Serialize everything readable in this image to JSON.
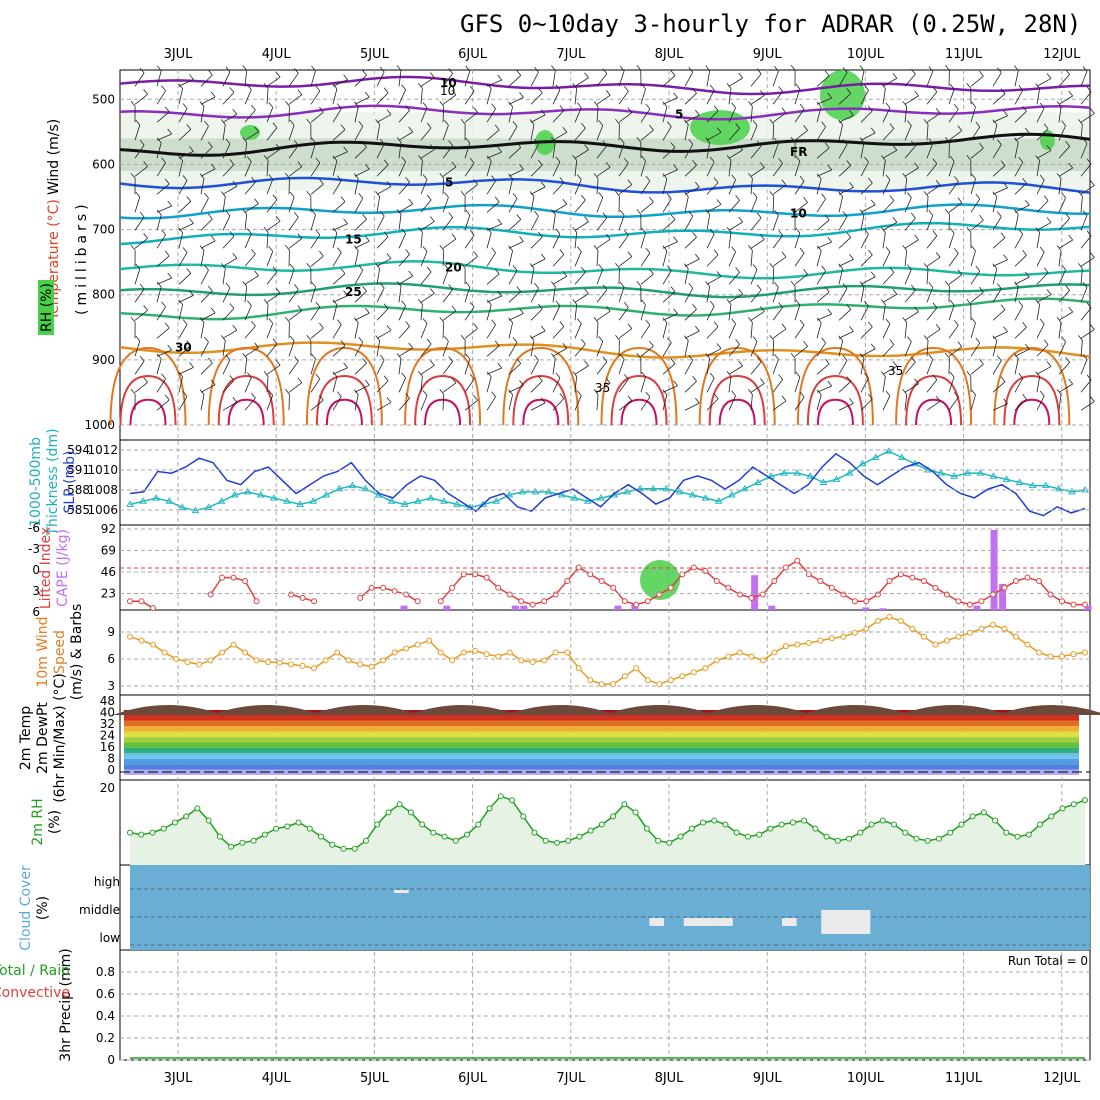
{
  "title": "GFS 0~10day 3-hourly for ADRAR (0.25W, 28N)",
  "dates": [
    "3JUL",
    "4JUL",
    "5JUL",
    "6JUL",
    "7JUL",
    "8JUL",
    "9JUL",
    "10JUL",
    "11JUL",
    "12JUL"
  ],
  "panels": {
    "upper": {
      "side_labels": [
        {
          "text": "Wind (m/s)",
          "color": "#000000"
        },
        {
          "text": "Temperature (°C)",
          "color": "#e04020"
        },
        {
          "text": "RH (%)",
          "color": "#000000"
        },
        {
          "text": "(millibars)",
          "color": "#000000"
        }
      ],
      "pressure_ticks": [
        "500",
        "600",
        "700",
        "800",
        "900",
        "1000"
      ],
      "contour_labels": [
        "10",
        "10",
        "5",
        "FR",
        "FR",
        "5",
        "5",
        "10",
        "15",
        "15",
        "20",
        "20",
        "25",
        "25",
        "30",
        "30",
        "35",
        "35"
      ],
      "rh_label": "30"
    },
    "slp": {
      "side_labels": [
        {
          "text": "1000-500mb",
          "color": "#20b0c0"
        },
        {
          "text": "Thickness (dm)",
          "color": "#20b0c0"
        },
        {
          "text": "SLP (mb)",
          "color": "#2040d0"
        }
      ],
      "left_ticks": [
        "594",
        "591",
        "588",
        "585"
      ],
      "right_ticks": [
        "1012",
        "1010",
        "1008",
        "1006"
      ]
    },
    "cape": {
      "side_labels": [
        {
          "text": "Lifted Index",
          "color": "#e04040"
        },
        {
          "text": "CAPE (J/kg)",
          "color": "#c070f0"
        }
      ],
      "left_ticks": [
        "-6",
        "-3",
        "0",
        "3",
        "6"
      ],
      "right_ticks": [
        "92",
        "69",
        "46",
        "23"
      ]
    },
    "wind10": {
      "side_labels": [
        {
          "text": "10m Wind",
          "color": "#e08020"
        },
        {
          "text": "Speed",
          "color": "#e08020"
        },
        {
          "text": "(m/s) & Barbs",
          "color": "#000000"
        }
      ],
      "ticks": [
        "9",
        "6",
        "3"
      ]
    },
    "temp2m": {
      "side_labels": [
        {
          "text": "2m Temp",
          "color": "#000000"
        },
        {
          "text": "2m DewPt",
          "color": "#000000"
        },
        {
          "text": "(6hr Min/Max) (°C)",
          "color": "#000000"
        }
      ],
      "ticks": [
        "48",
        "40",
        "32",
        "24",
        "16",
        "8",
        "0"
      ]
    },
    "rh2m": {
      "side_labels": [
        {
          "text": "2m RH",
          "color": "#20a020"
        },
        {
          "text": "(%)",
          "color": "#000000"
        }
      ],
      "ticks": [
        "20"
      ]
    },
    "cloud": {
      "side_labels": [
        {
          "text": "Cloud Cover",
          "color": "#5aaad8"
        },
        {
          "text": "(%)",
          "color": "#000000"
        }
      ],
      "levels": [
        "high",
        "middle",
        "low"
      ]
    },
    "precip": {
      "side_labels": [
        {
          "text": "Total / Rain",
          "color": "#20a020"
        },
        {
          "text": "Convective",
          "color": "#e04040"
        },
        {
          "text": "3hr Precip (mm)",
          "color": "#000000"
        }
      ],
      "ticks": [
        "0.8",
        "0.6",
        "0.4",
        "0.2",
        "0"
      ],
      "run_total": "Run Total = 0"
    }
  },
  "colors": {
    "grid": "#aaaaaa",
    "cloud_bg": "#6aaed6",
    "slp_line": "#1f3fd0",
    "thickness_line": "#20b8c0",
    "lifted_index": "#e04040",
    "cape_bars": "#c070f0",
    "wind_line": "#e89a20",
    "rh_line": "#20a020",
    "temp_dark": "#6b4a3c"
  },
  "chart_data": [
    {
      "type": "line",
      "name": "slp",
      "ylabel": "SLP (mb)",
      "ylim": [
        1005,
        1013.5
      ],
      "values": [
        1008,
        1008.2,
        1010.5,
        1010.3,
        1011,
        1012,
        1011.5,
        1009.5,
        1009,
        1010.5,
        1011,
        1009.5,
        1008,
        1009,
        1010,
        1010.5,
        1011.5,
        1009.5,
        1008,
        1007.5,
        1009,
        1010,
        1009.5,
        1008,
        1007,
        1006,
        1007.5,
        1008,
        1006.5,
        1006,
        1007.5,
        1008,
        1008.5,
        1007.5,
        1006.5,
        1008,
        1009,
        1008,
        1006.8,
        1007.5,
        1009.5,
        1010,
        1009.5,
        1008.5,
        1009.5,
        1011,
        1010,
        1009,
        1008,
        1009,
        1011,
        1012.5,
        1011.5,
        1010,
        1009,
        1010,
        1011,
        1011.5,
        1010.5,
        1009,
        1008,
        1007.5,
        1008.5,
        1009,
        1008,
        1006,
        1005.5,
        1006.5,
        1005.8,
        1006.3
      ]
    },
    {
      "type": "line",
      "name": "thickness",
      "ylabel": "1000-500mb Thickness (dm)",
      "ylim": [
        583,
        595
      ],
      "values": [
        585.5,
        586,
        586.5,
        586,
        585,
        584.5,
        585,
        586,
        587,
        587.5,
        587,
        586.5,
        586,
        585.5,
        586,
        587,
        588,
        588.5,
        588,
        587,
        586,
        585.5,
        586,
        586.5,
        586,
        585.5,
        585,
        585.5,
        586,
        587,
        587.5,
        587.5,
        587.5,
        587,
        586.5,
        586,
        586.5,
        587,
        587.5,
        588,
        588,
        588,
        587.5,
        587,
        586.5,
        586,
        587,
        588,
        589,
        590,
        590.5,
        590.5,
        590,
        589,
        589.5,
        590.5,
        592,
        593,
        594,
        593,
        592,
        591,
        590.5,
        590,
        590.5,
        590.5,
        590,
        589.5,
        589,
        588.5,
        588.5,
        588,
        587.5,
        587.8
      ]
    },
    {
      "type": "line",
      "name": "lifted_index",
      "ylabel": "Lifted Index",
      "ylim": [
        6,
        -6
      ],
      "values": [
        5,
        5,
        6,
        null,
        null,
        null,
        null,
        4,
        1.5,
        1.5,
        2,
        5,
        null,
        null,
        4,
        4.5,
        5,
        null,
        null,
        null,
        4.5,
        3,
        3,
        3.5,
        4,
        5,
        null,
        5,
        3,
        1,
        1,
        1.5,
        3,
        4,
        5,
        5.5,
        5,
        4,
        2,
        0,
        1,
        2,
        3,
        5,
        5.5,
        5,
        4,
        3,
        1,
        0,
        0.5,
        2,
        3,
        4,
        4.5,
        4,
        2,
        0,
        -1,
        1,
        2,
        3,
        4,
        5,
        5,
        4,
        2,
        1,
        1.5,
        2,
        3,
        4,
        5,
        5.5,
        5,
        4,
        3,
        2,
        1.5,
        2,
        4,
        5,
        5.5,
        5.5
      ]
    },
    {
      "type": "bar",
      "name": "cape",
      "ylabel": "CAPE (J/kg)",
      "ylim": [
        0,
        92
      ],
      "bars": [
        [
          32,
          5
        ],
        [
          37,
          5
        ],
        [
          45,
          5
        ],
        [
          46,
          5
        ],
        [
          57,
          5
        ],
        [
          59,
          8
        ],
        [
          73,
          40
        ],
        [
          75,
          5
        ],
        [
          86,
          3
        ],
        [
          88,
          2
        ],
        [
          99,
          5
        ],
        [
          101,
          92
        ],
        [
          102,
          30
        ],
        [
          112,
          5
        ]
      ]
    },
    {
      "type": "line",
      "name": "wind10m",
      "ylabel": "Speed (m/s)",
      "ylim": [
        1,
        11
      ],
      "values": [
        8,
        7.5,
        7,
        6,
        5.2,
        4.8,
        4.5,
        5,
        6,
        7,
        6,
        5,
        4.8,
        4.7,
        4.5,
        4.3,
        4,
        5,
        6,
        5,
        4.5,
        4.2,
        5,
        6,
        6.5,
        7,
        7.5,
        6,
        5,
        6,
        6.2,
        5.8,
        5.5,
        6,
        5,
        4.8,
        5,
        6,
        6,
        4,
        2.5,
        2,
        2,
        3,
        4,
        2.5,
        2,
        2.5,
        3,
        3.5,
        4,
        5,
        5.5,
        6,
        5.5,
        5,
        6,
        6.8,
        7,
        7.2,
        7.5,
        7.8,
        8,
        8.5,
        9,
        10,
        10.5,
        10,
        9,
        8,
        7,
        7.5,
        8,
        8.5,
        9,
        9.5,
        9,
        8,
        7,
        6,
        5.5,
        5.5,
        5.8,
        6
      ]
    },
    {
      "type": "area",
      "name": "rh2m",
      "ylabel": "2m RH (%)",
      "ylim": [
        0,
        21
      ],
      "values": [
        8,
        7.5,
        8,
        9,
        10.5,
        12,
        14,
        11,
        7,
        4.5,
        5.5,
        6,
        7.5,
        9,
        9.5,
        10.5,
        9,
        7,
        5,
        4,
        4,
        6,
        10,
        13,
        15,
        13,
        10,
        8,
        7,
        6,
        7.5,
        10,
        14,
        17,
        16,
        12,
        8,
        6,
        5.5,
        6,
        7,
        8.5,
        10,
        12,
        15,
        13,
        9,
        6,
        5.5,
        7,
        9,
        10.5,
        11,
        10,
        8,
        7,
        7.5,
        9,
        10,
        10.5,
        11,
        9,
        7,
        6,
        6.5,
        8,
        10,
        11,
        10,
        8,
        6.5,
        6,
        6.5,
        8,
        10,
        12,
        13,
        11,
        8,
        7,
        7.5,
        10,
        12,
        14,
        15,
        16
      ]
    },
    {
      "type": "bar",
      "name": "cloud_cover",
      "ylabel": "Cloud Cover (%)",
      "categories": [
        "high",
        "middle",
        "low"
      ],
      "segments": [
        [
          5.2,
          5.35,
          "high"
        ],
        [
          7.8,
          7.95,
          "middle"
        ],
        [
          8.15,
          8.3,
          "middle"
        ],
        [
          8.3,
          8.5,
          "middle"
        ],
        [
          8.5,
          8.65,
          "middle"
        ],
        [
          9.15,
          9.3,
          "middle"
        ],
        [
          9.55,
          10.05,
          "middle"
        ]
      ]
    },
    {
      "type": "line",
      "name": "precip",
      "ylabel": "3hr Precip (mm)",
      "ylim": [
        0,
        1
      ],
      "values": [
        0,
        0,
        0,
        0,
        0,
        0,
        0,
        0,
        0,
        0
      ]
    }
  ]
}
